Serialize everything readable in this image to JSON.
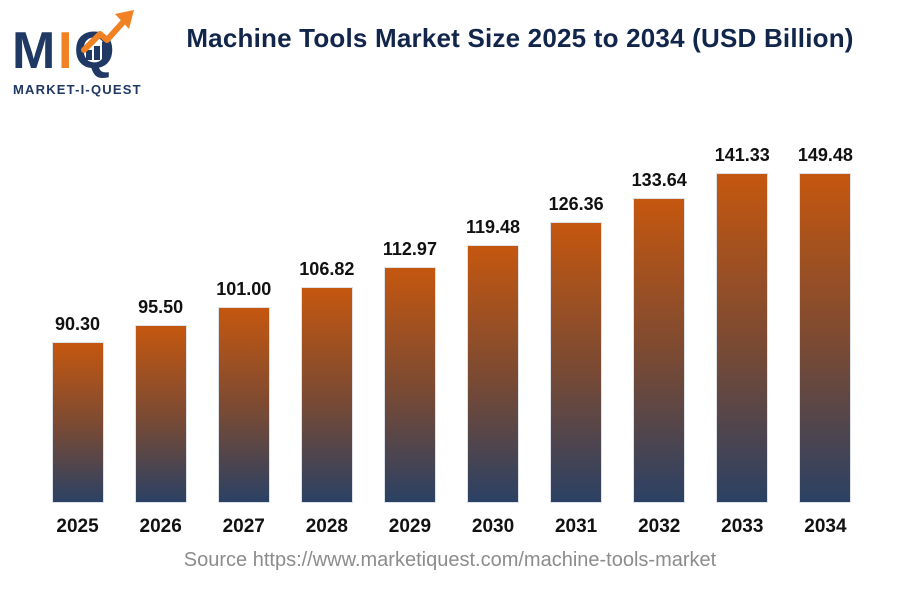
{
  "logo": {
    "letter_m": "M",
    "letter_i": "I",
    "letter_q": "Q",
    "tagline": "MARKET-I-QUEST",
    "navy": "#1F3864",
    "orange": "#F08223"
  },
  "title": "Machine Tools Market Size 2025 to 2034 (USD Billion)",
  "source": "Source https://www.marketiquest.com/machine-tools-market",
  "colors": {
    "title_navy": "#12264C",
    "bar_gradient_top": "#C5570F",
    "bar_gradient_bottom": "#2B4164",
    "value_label": "#111111",
    "year_label": "#111111",
    "source_gray": "#8C8C8C",
    "background": "#FFFFFF"
  },
  "chart_data": {
    "type": "bar",
    "title": "Machine Tools Market Size 2025 to 2034 (USD Billion)",
    "unit": "USD Billion",
    "categories": [
      "2025",
      "2026",
      "2027",
      "2028",
      "2029",
      "2030",
      "2031",
      "2032",
      "2033",
      "2034"
    ],
    "values": [
      90.3,
      95.5,
      101.0,
      106.82,
      112.97,
      119.48,
      126.36,
      133.64,
      141.33,
      149.48
    ],
    "value_labels": [
      "90.30",
      "95.50",
      "101.00",
      "106.82",
      "112.97",
      "119.48",
      "126.36",
      "133.64",
      "141.33",
      "149.48"
    ],
    "xlabel": "",
    "ylabel": "",
    "grid": false,
    "legend": "none",
    "axis_lines": "none",
    "bar_style": "vertical gradient, orange top to navy bottom"
  }
}
